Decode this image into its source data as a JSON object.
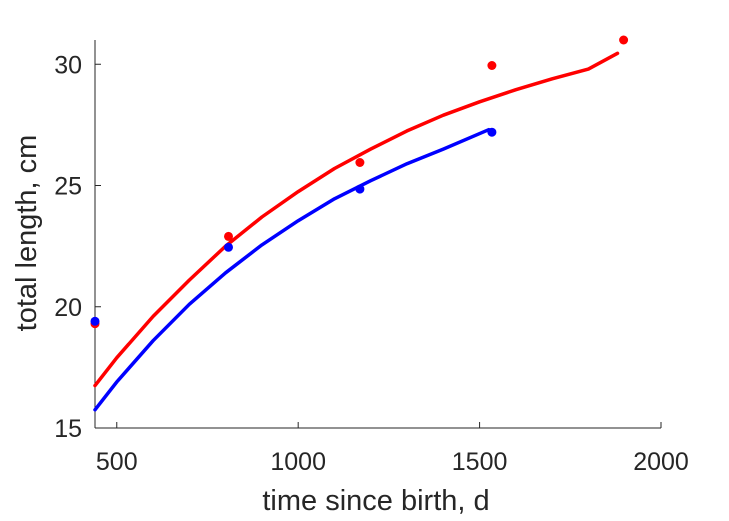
{
  "chart_data": {
    "type": "scatter",
    "xlabel": "time since birth, d",
    "ylabel": "total length, cm",
    "xlim": [
      440,
      2000
    ],
    "ylim": [
      15,
      31
    ],
    "xticks": [
      500,
      1000,
      1500,
      2000
    ],
    "yticks": [
      15,
      20,
      25,
      30
    ],
    "grid": false,
    "series": [
      {
        "color": "#ff0000",
        "points": {
          "x": [
            440,
            808,
            1170,
            1534,
            1897
          ],
          "y": [
            19.3,
            22.9,
            25.95,
            29.95,
            31.0
          ]
        },
        "fit": {
          "x": [
            440,
            500,
            600,
            700,
            800,
            900,
            1000,
            1100,
            1200,
            1300,
            1400,
            1500,
            1600,
            1700,
            1800,
            1880
          ],
          "y": [
            16.75,
            17.9,
            19.6,
            21.1,
            22.5,
            23.7,
            24.75,
            25.7,
            26.5,
            27.25,
            27.9,
            28.45,
            28.95,
            29.4,
            29.8,
            30.45
          ]
        }
      },
      {
        "color": "#0000ff",
        "points": {
          "x": [
            440,
            808,
            1170,
            1534
          ],
          "y": [
            19.4,
            22.45,
            24.85,
            27.2
          ]
        },
        "fit": {
          "x": [
            440,
            500,
            600,
            700,
            800,
            900,
            1000,
            1100,
            1200,
            1300,
            1400,
            1525
          ],
          "y": [
            15.75,
            16.9,
            18.6,
            20.1,
            21.4,
            22.55,
            23.55,
            24.45,
            25.2,
            25.9,
            26.5,
            27.3
          ]
        }
      }
    ]
  }
}
